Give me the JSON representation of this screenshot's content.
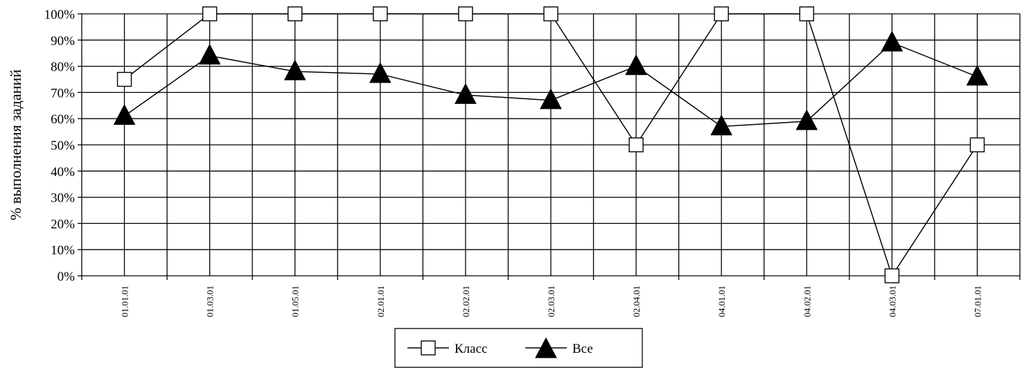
{
  "chart_data": {
    "type": "line",
    "title": "",
    "xlabel": "",
    "ylabel": "% выполнения заданий",
    "ylim": [
      0,
      100
    ],
    "yticks": [
      "0%",
      "10%",
      "20%",
      "30%",
      "40%",
      "50%",
      "60%",
      "70%",
      "80%",
      "90%",
      "100%"
    ],
    "grid": true,
    "legend_position": "bottom-center",
    "categories": [
      "01.01.01",
      "01.03.01",
      "01.05.01",
      "02.01.01",
      "02.02.01",
      "02.03.01",
      "02.04.01",
      "04.01.01",
      "04.02.01",
      "04.03.01",
      "07.01.01"
    ],
    "series": [
      {
        "name": "Класс",
        "marker": "square-open",
        "color": "#000000",
        "values": [
          75,
          100,
          100,
          100,
          100,
          100,
          50,
          100,
          100,
          0,
          50
        ]
      },
      {
        "name": "Все",
        "marker": "triangle-filled",
        "color": "#000000",
        "values": [
          61,
          84,
          78,
          77,
          69,
          67,
          80,
          57,
          59,
          89,
          76
        ]
      }
    ]
  }
}
